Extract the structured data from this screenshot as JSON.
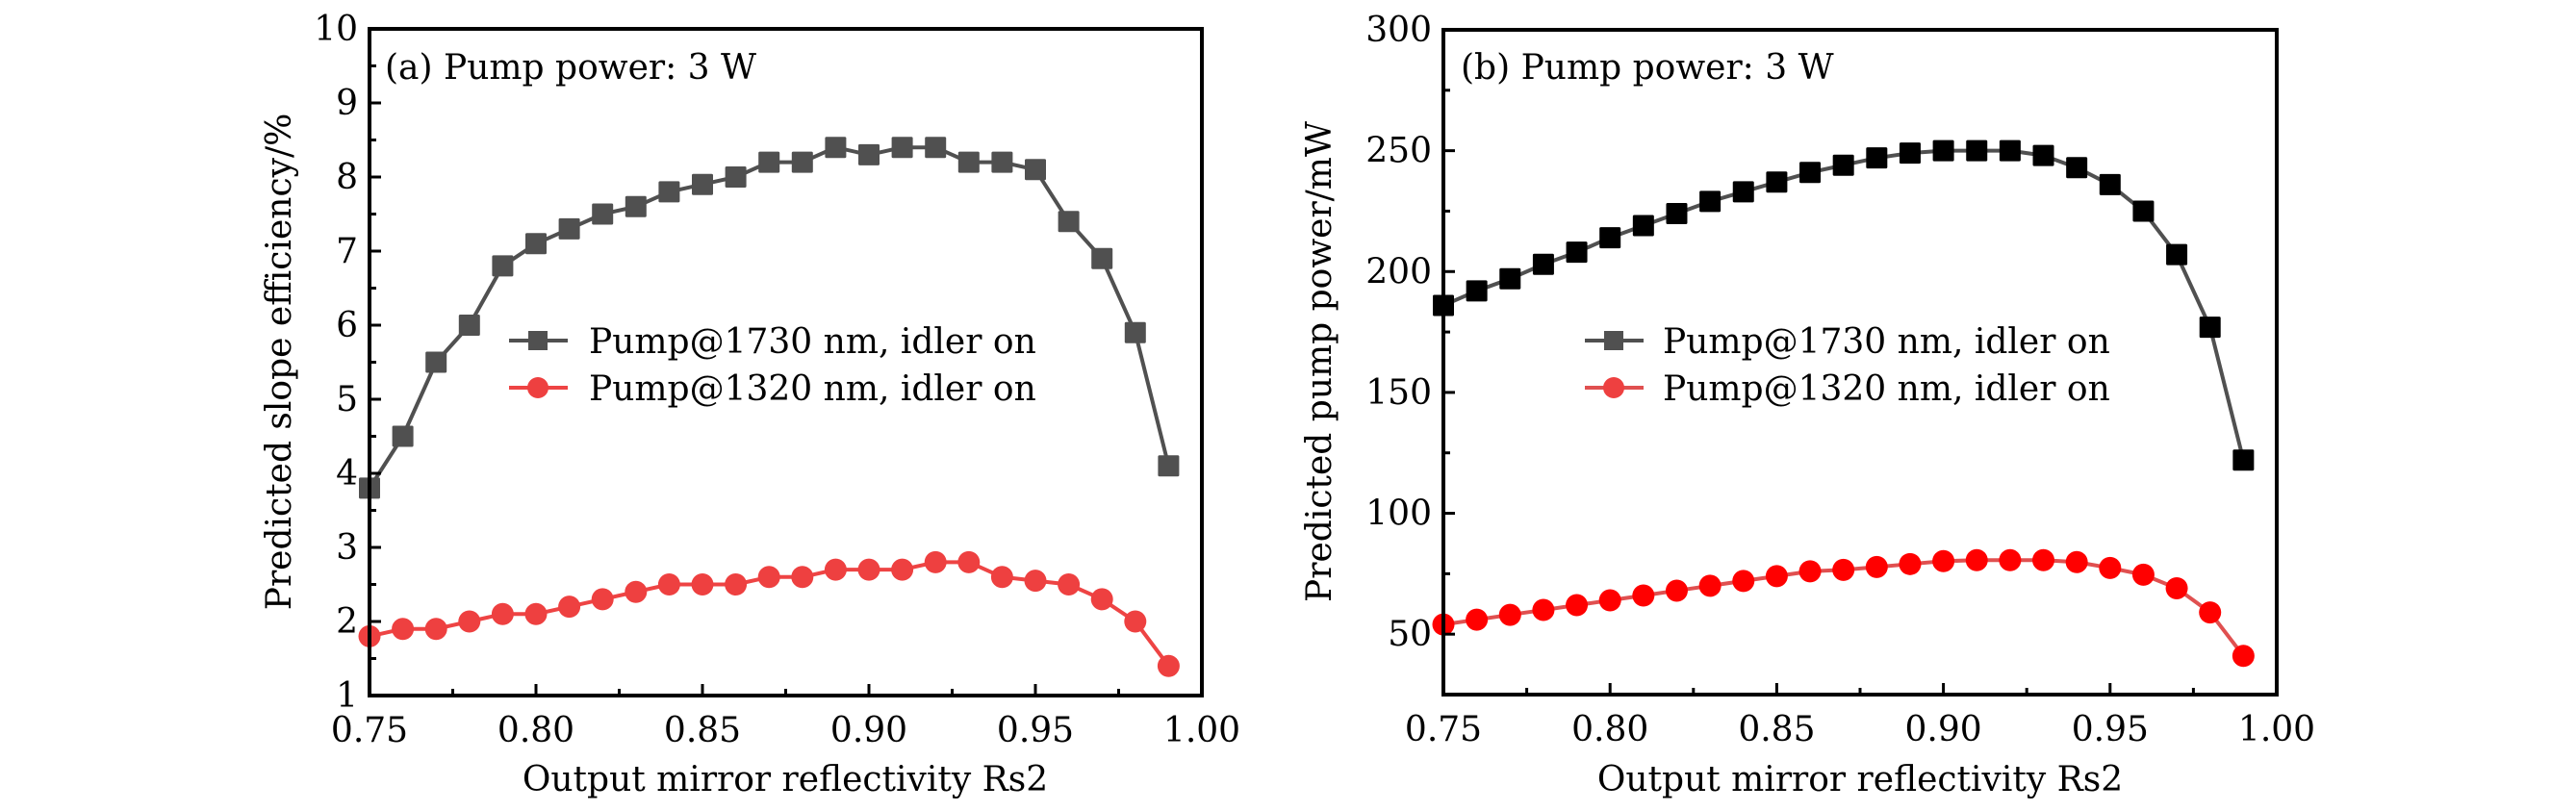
{
  "chart_data": [
    {
      "id": "a",
      "type": "line",
      "panel_label": "(a) Pump power: 3 W",
      "xlabel": "Output mirror reflectivity Rs2",
      "ylabel": "Predicted slope efficiency/%",
      "xlim": [
        0.75,
        1.0
      ],
      "ylim": [
        1,
        10
      ],
      "xticks": [
        0.75,
        0.8,
        0.85,
        0.9,
        0.95,
        1.0
      ],
      "xtick_labels": [
        "0.75",
        "0.80",
        "0.85",
        "0.90",
        "0.95",
        "1.00"
      ],
      "xminor_step": 0.025,
      "yticks": [
        1,
        2,
        3,
        4,
        5,
        6,
        7,
        8,
        9,
        10
      ],
      "ytick_labels": [
        "1",
        "2",
        "3",
        "4",
        "5",
        "6",
        "7",
        "8",
        "9",
        "10"
      ],
      "yminor_step": 0.5,
      "grid": false,
      "legend_position": "center",
      "x": [
        0.75,
        0.76,
        0.77,
        0.78,
        0.79,
        0.8,
        0.81,
        0.82,
        0.83,
        0.84,
        0.85,
        0.86,
        0.87,
        0.88,
        0.89,
        0.9,
        0.91,
        0.92,
        0.93,
        0.94,
        0.95,
        0.96,
        0.97,
        0.98,
        0.99
      ],
      "series": [
        {
          "name": "Pump@1730 nm, idler on",
          "marker": "square",
          "line_color": "#505050",
          "marker_color": "#505050",
          "values": [
            3.8,
            4.5,
            5.5,
            6.0,
            6.8,
            7.1,
            7.3,
            7.5,
            7.6,
            7.8,
            7.9,
            8.0,
            8.2,
            8.2,
            8.4,
            8.3,
            8.4,
            8.4,
            8.2,
            8.2,
            8.1,
            7.4,
            6.9,
            5.9,
            4.1
          ]
        },
        {
          "name": "Pump@1320 nm, idler on",
          "marker": "circle",
          "line_color": "#ee4444",
          "marker_color": "#ee4040",
          "values": [
            1.8,
            1.9,
            1.9,
            2.0,
            2.1,
            2.1,
            2.2,
            2.3,
            2.4,
            2.5,
            2.5,
            2.5,
            2.6,
            2.6,
            2.7,
            2.7,
            2.7,
            2.8,
            2.8,
            2.6,
            2.55,
            2.5,
            2.3,
            2.0,
            1.4
          ]
        }
      ]
    },
    {
      "id": "b",
      "type": "line",
      "panel_label": "(b) Pump power: 3 W",
      "xlabel": "Output mirror reflectivity Rs2",
      "ylabel": "Predicted pump power/mW",
      "xlim": [
        0.75,
        1.0
      ],
      "ylim": [
        25,
        300
      ],
      "xticks": [
        0.75,
        0.8,
        0.85,
        0.9,
        0.95,
        1.0
      ],
      "xtick_labels": [
        "0.75",
        "0.80",
        "0.85",
        "0.90",
        "0.95",
        "1.00"
      ],
      "xminor_step": 0.025,
      "yticks": [
        50,
        100,
        150,
        200,
        250,
        300
      ],
      "ytick_labels": [
        "50",
        "100",
        "150",
        "200",
        "250",
        "300"
      ],
      "yminor_step": 25,
      "grid": false,
      "legend_position": "center",
      "x": [
        0.75,
        0.76,
        0.77,
        0.78,
        0.79,
        0.8,
        0.81,
        0.82,
        0.83,
        0.84,
        0.85,
        0.86,
        0.87,
        0.88,
        0.89,
        0.9,
        0.91,
        0.92,
        0.93,
        0.94,
        0.95,
        0.96,
        0.97,
        0.98,
        0.99
      ],
      "series": [
        {
          "name": "Pump@1730 nm, idler on",
          "marker": "square",
          "line_color": "#505050",
          "marker_color": "#000000",
          "legend_marker_color": "#505050",
          "values": [
            186,
            192,
            197,
            203,
            208,
            214,
            219,
            224,
            229,
            233,
            237,
            241,
            244,
            247,
            249,
            250,
            250,
            250,
            248,
            243,
            236,
            225,
            207,
            177,
            122
          ]
        },
        {
          "name": "Pump@1320 nm, idler on",
          "marker": "circle",
          "line_color": "#e05050",
          "marker_color": "#ff0000",
          "legend_marker_color": "#ee4040",
          "values": [
            54,
            56,
            58,
            60,
            62,
            64,
            66,
            68,
            70,
            72,
            74,
            76,
            76.6,
            77.8,
            79,
            80.2,
            80.6,
            80.6,
            80.6,
            79.8,
            77.4,
            74.6,
            69,
            59,
            41
          ]
        }
      ]
    }
  ]
}
